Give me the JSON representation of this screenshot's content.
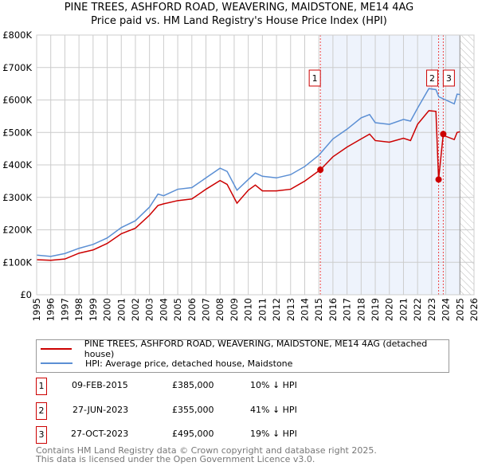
{
  "chart_data": {
    "type": "line",
    "title": "PINE TREES, ASHFORD ROAD, WEAVERING, MAIDSTONE, ME14 4AG",
    "subtitle": "Price paid vs. HM Land Registry's House Price Index (HPI)",
    "xlim": [
      1995,
      2026
    ],
    "ylim": [
      0,
      800000
    ],
    "x_ticks": [
      "1995",
      "1996",
      "1997",
      "1998",
      "1999",
      "2000",
      "2001",
      "2002",
      "2003",
      "2004",
      "2005",
      "2006",
      "2007",
      "2008",
      "2009",
      "2010",
      "2011",
      "2012",
      "2013",
      "2014",
      "2015",
      "2016",
      "2017",
      "2018",
      "2019",
      "2020",
      "2021",
      "2022",
      "2023",
      "2024",
      "2025",
      "2026"
    ],
    "y_ticks": [
      {
        "v": 0,
        "label": "£0"
      },
      {
        "v": 100000,
        "label": "£100K"
      },
      {
        "v": 200000,
        "label": "£200K"
      },
      {
        "v": 300000,
        "label": "£300K"
      },
      {
        "v": 400000,
        "label": "£400K"
      },
      {
        "v": 500000,
        "label": "£500K"
      },
      {
        "v": 600000,
        "label": "£600K"
      },
      {
        "v": 700000,
        "label": "£700K"
      },
      {
        "v": 800000,
        "label": "£800K"
      }
    ],
    "grid": true,
    "shaded_from": 2015.11,
    "hatched_from": 2025,
    "series": [
      {
        "name": "PINE TREES, ASHFORD ROAD, WEAVERING, MAIDSTONE, ME14 4AG (detached house)",
        "color": "#cc0000",
        "x": [
          1995,
          1996,
          1997,
          1998,
          1999,
          2000,
          2001,
          2002,
          2003,
          2003.6,
          2004,
          2005,
          2006,
          2007,
          2008,
          2008.5,
          2009.2,
          2010,
          2010.5,
          2011,
          2012,
          2013,
          2014,
          2015.11,
          2016,
          2017,
          2018,
          2018.6,
          2019,
          2020,
          2021,
          2021.5,
          2022,
          2022.8,
          2023.3,
          2023.49,
          2023.82,
          2024,
          2024.6,
          2024.8,
          2025
        ],
        "y": [
          108000,
          106000,
          110000,
          128000,
          138000,
          158000,
          188000,
          205000,
          245000,
          275000,
          280000,
          290000,
          295000,
          325000,
          352000,
          340000,
          282000,
          322000,
          338000,
          320000,
          320000,
          325000,
          350000,
          385000,
          425000,
          455000,
          480000,
          495000,
          475000,
          470000,
          482000,
          475000,
          525000,
          567000,
          565000,
          355000,
          495000,
          488000,
          478000,
          500000,
          502000
        ]
      },
      {
        "name": "HPI: Average price, detached house, Maidstone",
        "color": "#5b8fd4",
        "x": [
          1995,
          1996,
          1997,
          1998,
          1999,
          2000,
          2001,
          2002,
          2003,
          2003.6,
          2004,
          2005,
          2006,
          2007,
          2008,
          2008.5,
          2009.2,
          2010,
          2010.5,
          2011,
          2012,
          2013,
          2014,
          2015,
          2016,
          2017,
          2018,
          2018.6,
          2019,
          2020,
          2021,
          2021.5,
          2022,
          2022.8,
          2023.3,
          2023.5,
          2024,
          2024.6,
          2024.8,
          2025
        ],
        "y": [
          122000,
          118000,
          127000,
          143000,
          155000,
          175000,
          207000,
          228000,
          270000,
          310000,
          305000,
          325000,
          330000,
          360000,
          390000,
          380000,
          322000,
          355000,
          375000,
          365000,
          360000,
          370000,
          395000,
          430000,
          480000,
          510000,
          545000,
          555000,
          530000,
          525000,
          540000,
          535000,
          575000,
          635000,
          632000,
          610000,
          600000,
          588000,
          618000,
          617000
        ]
      }
    ],
    "sales": [
      {
        "id": "1",
        "x": 2015.11,
        "price": 385000,
        "date": "09-FEB-2015",
        "price_label": "£385,000",
        "hpi": "10% ↓ HPI"
      },
      {
        "id": "2",
        "x": 2023.49,
        "price": 355000,
        "date": "27-JUN-2023",
        "price_label": "£355,000",
        "hpi": "41% ↓ HPI"
      },
      {
        "id": "3",
        "x": 2023.82,
        "price": 495000,
        "date": "27-OCT-2023",
        "price_label": "£495,000",
        "hpi": "19% ↓ HPI"
      }
    ]
  },
  "footer": {
    "line1": "Contains HM Land Registry data © Crown copyright and database right 2025.",
    "line2": "This data is licensed under the Open Government Licence v3.0."
  }
}
